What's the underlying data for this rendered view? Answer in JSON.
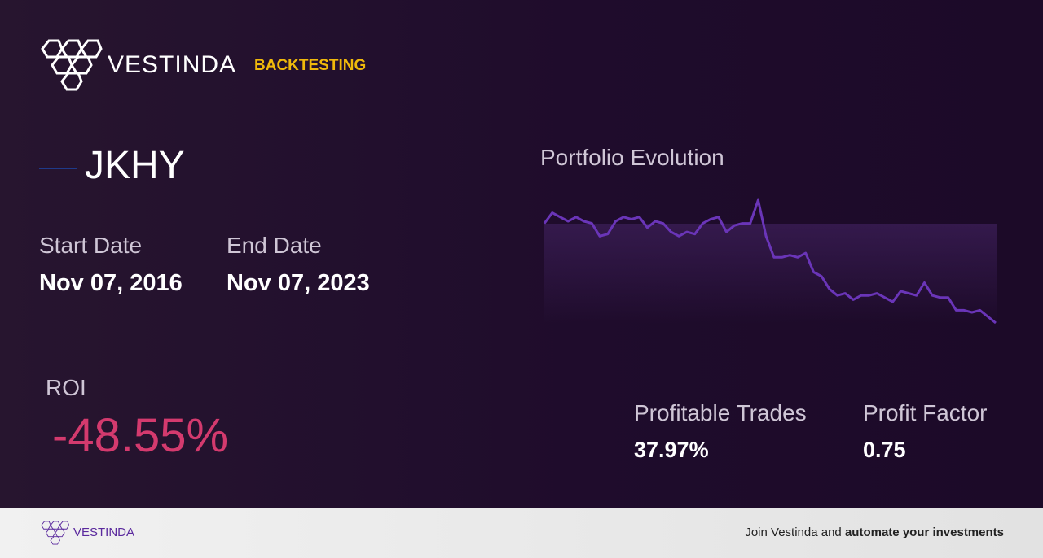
{
  "header": {
    "brand": "VESTINDA",
    "section": "BACKTESTING"
  },
  "ticker": "JKHY",
  "start_date": {
    "label": "Start Date",
    "value": "Nov 07, 2016"
  },
  "end_date": {
    "label": "End Date",
    "value": "Nov 07, 2023"
  },
  "roi": {
    "label": "ROI",
    "value": "-48.55%"
  },
  "chart_data": {
    "type": "line",
    "title": "Portfolio Evolution",
    "color": "#6a35b8",
    "values": [
      98,
      103,
      101,
      99,
      101,
      99,
      98,
      92,
      93,
      99,
      101,
      100,
      101,
      96,
      99,
      98,
      94,
      92,
      94,
      93,
      98,
      100,
      101,
      94,
      97,
      98,
      98,
      109,
      92,
      82,
      82,
      83,
      82,
      84,
      75,
      73,
      67,
      64,
      65,
      62,
      64,
      64,
      65,
      63,
      61,
      66,
      65,
      64,
      70,
      64,
      63,
      63,
      57,
      57,
      56,
      57,
      54,
      51
    ]
  },
  "stats": [
    {
      "label": "Profitable Trades",
      "value": "37.97%"
    },
    {
      "label": "Profit Factor",
      "value": "0.75"
    }
  ],
  "footer": {
    "brand": "VESTINDA",
    "text": "Join Vestinda and",
    "emphasis": "automate your investments"
  }
}
